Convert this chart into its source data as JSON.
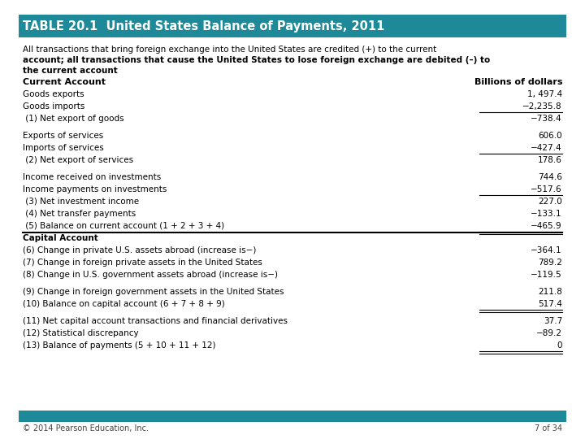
{
  "title": "TABLE 20.1  United States Balance of Payments, 2011",
  "header_bg": "#1E8A99",
  "header_text_color": "#FFFFFF",
  "subtitle_line1": "All transactions that bring foreign exchange into the United States are credited (+) to the current",
  "subtitle_line2": "account; all transactions that cause the United States to lose foreign exchange are debited (–) to",
  "subtitle_line3": "the current account",
  "col_header_left": "Current Account",
  "col_header_right": "Billions of dollars",
  "rows": [
    {
      "label": "Goods exports",
      "value": "1, 497.4",
      "bold": false,
      "ul_below": false,
      "dbl_ul": false,
      "gap_before": false,
      "ul_above": false
    },
    {
      "label": "Goods imports",
      "value": "−2,235.8",
      "bold": false,
      "ul_below": true,
      "dbl_ul": false,
      "gap_before": false,
      "ul_above": false
    },
    {
      "label": " (1) Net export of goods",
      "value": "−738.4",
      "bold": false,
      "ul_below": false,
      "dbl_ul": false,
      "gap_before": false,
      "ul_above": false
    },
    {
      "label": "Exports of services",
      "value": "606.0",
      "bold": false,
      "ul_below": false,
      "dbl_ul": false,
      "gap_before": true,
      "ul_above": false
    },
    {
      "label": "Imports of services",
      "value": "−427.4",
      "bold": false,
      "ul_below": true,
      "dbl_ul": false,
      "gap_before": false,
      "ul_above": false
    },
    {
      "label": " (2) Net export of services",
      "value": "178.6",
      "bold": false,
      "ul_below": false,
      "dbl_ul": false,
      "gap_before": false,
      "ul_above": false
    },
    {
      "label": "Income received on investments",
      "value": "744.6",
      "bold": false,
      "ul_below": false,
      "dbl_ul": false,
      "gap_before": true,
      "ul_above": false
    },
    {
      "label": "Income payments on investments",
      "value": "−517.6",
      "bold": false,
      "ul_below": true,
      "dbl_ul": false,
      "gap_before": false,
      "ul_above": false
    },
    {
      "label": " (3) Net investment income",
      "value": "227.0",
      "bold": false,
      "ul_below": false,
      "dbl_ul": false,
      "gap_before": false,
      "ul_above": false
    },
    {
      "label": " (4) Net transfer payments",
      "value": "−133.1",
      "bold": false,
      "ul_below": false,
      "dbl_ul": false,
      "gap_before": false,
      "ul_above": false
    },
    {
      "label": " (5) Balance on current account (1 + 2 + 3 + 4)",
      "value": "−465.9",
      "bold": false,
      "ul_below": true,
      "dbl_ul": true,
      "gap_before": false,
      "ul_above": false
    },
    {
      "label": "Capital Account",
      "value": "",
      "bold": true,
      "ul_below": false,
      "dbl_ul": false,
      "gap_before": false,
      "ul_above": true
    },
    {
      "label": "(6) Change in private U.S. assets abroad (increase is−)",
      "value": "−364.1",
      "bold": false,
      "ul_below": false,
      "dbl_ul": false,
      "gap_before": false,
      "ul_above": false
    },
    {
      "label": "(7) Change in foreign private assets in the United States",
      "value": "789.2",
      "bold": false,
      "ul_below": false,
      "dbl_ul": false,
      "gap_before": false,
      "ul_above": false
    },
    {
      "label": "(8) Change in U.S. government assets abroad (increase is−)",
      "value": "−119.5",
      "bold": false,
      "ul_below": false,
      "dbl_ul": false,
      "gap_before": false,
      "ul_above": false
    },
    {
      "label": "(9) Change in foreign government assets in the United States",
      "value": "211.8",
      "bold": false,
      "ul_below": false,
      "dbl_ul": false,
      "gap_before": true,
      "ul_above": false
    },
    {
      "label": "(10) Balance on capital account (6 + 7 + 8 + 9)",
      "value": "517.4",
      "bold": false,
      "ul_below": true,
      "dbl_ul": true,
      "gap_before": false,
      "ul_above": false
    },
    {
      "label": "(11) Net capital account transactions and financial derivatives",
      "value": "37.7",
      "bold": false,
      "ul_below": false,
      "dbl_ul": false,
      "gap_before": true,
      "ul_above": false
    },
    {
      "label": "(12) Statistical discrepancy",
      "value": "−89.2",
      "bold": false,
      "ul_below": false,
      "dbl_ul": false,
      "gap_before": false,
      "ul_above": false
    },
    {
      "label": "(13) Balance of payments (5 + 10 + 11 + 12)",
      "value": "0",
      "bold": false,
      "ul_below": true,
      "dbl_ul": true,
      "gap_before": false,
      "ul_above": false
    }
  ],
  "footer_text": "© 2014 Pearson Education, Inc.",
  "page_text": "7 of 34",
  "footer_bg": "#1E8A99",
  "bg_color": "#FFFFFF",
  "text_color": "#000000"
}
